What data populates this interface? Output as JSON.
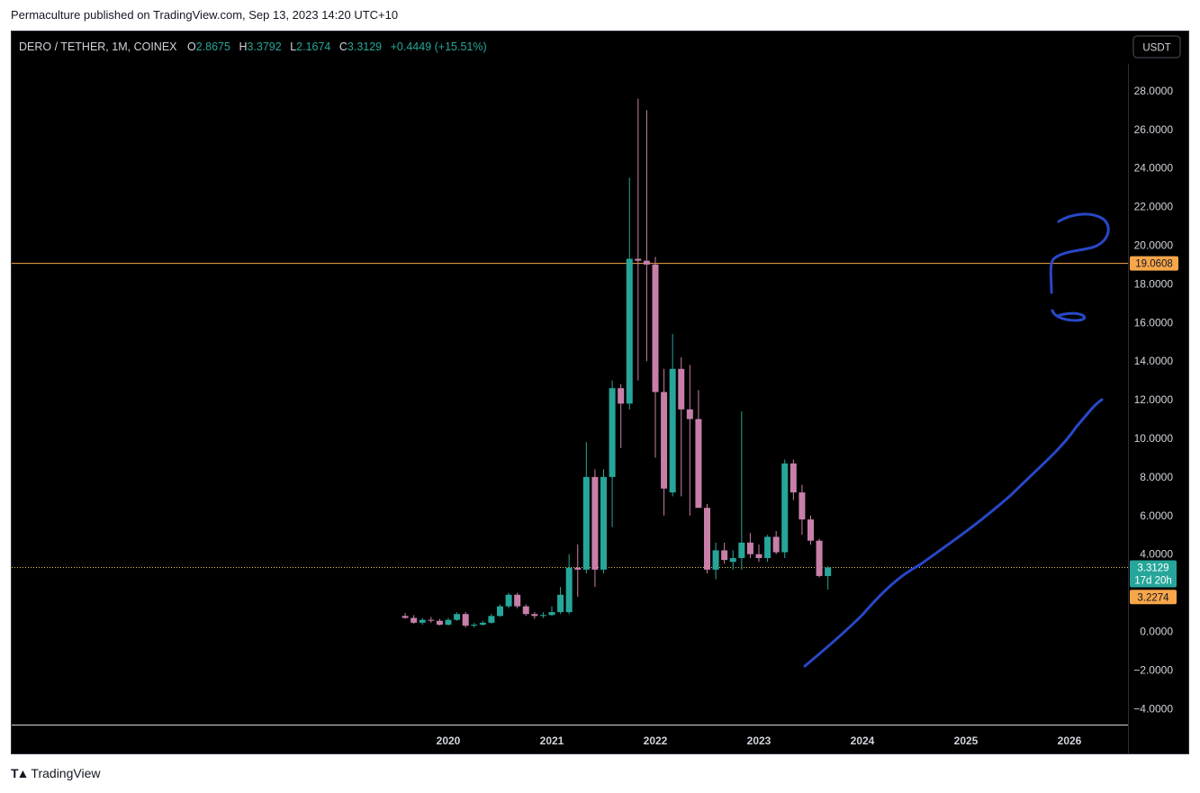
{
  "header": {
    "publish_line": "Permaculture published on TradingView.com, Sep 13, 2023 14:20 UTC+10"
  },
  "footer": {
    "brand": "TradingView",
    "logo_icon": "tradingview-logo-icon"
  },
  "legend": {
    "symbol": "DERO / TETHER, 1M, COINEX",
    "o_label": "O",
    "o_value": "2.8675",
    "h_label": "H",
    "h_value": "3.3792",
    "l_label": "L",
    "l_value": "2.1674",
    "c_label": "C",
    "c_value": "3.3129",
    "change": "+0.4449 (+15.51%)"
  },
  "currency_button": "USDT",
  "colors": {
    "up": "#26a69a",
    "down": "#c77fa8",
    "orange_line": "#f7a64a",
    "price_line": "#e8c25e",
    "drawing": "#2848c8",
    "axis_text": "#d1d4dc"
  },
  "chart_data": {
    "type": "candlestick",
    "ylim": [
      -5,
      30
    ],
    "ytick_labels": [
      "28.0000",
      "26.0000",
      "24.0000",
      "22.0000",
      "20.0000",
      "18.0000",
      "16.0000",
      "14.0000",
      "12.0000",
      "10.0000",
      "8.0000",
      "6.0000",
      "4.0000",
      "0.0000",
      "−2.0000",
      "−4.0000"
    ],
    "ytick_values": [
      28,
      26,
      24,
      22,
      20,
      18,
      16,
      14,
      12,
      10,
      8,
      6,
      4,
      0,
      -2,
      -4
    ],
    "xtick_labels": [
      "2020",
      "2021",
      "2022",
      "2023",
      "2024",
      "2025",
      "2026"
    ],
    "xtick_values": [
      2020,
      2021,
      2022,
      2023,
      2024,
      2025,
      2026
    ],
    "horizontal_line": {
      "value": 19.0608,
      "label": "19.0608"
    },
    "current_price": {
      "value": 3.3129,
      "label": "3.3129",
      "countdown": "17d 20h"
    },
    "prev_marker": {
      "value": 3.2274,
      "label": "3.2274"
    },
    "candles": [
      {
        "t": "2019-08",
        "o": 0.8,
        "h": 0.95,
        "l": 0.65,
        "c": 0.7
      },
      {
        "t": "2019-09",
        "o": 0.7,
        "h": 0.85,
        "l": 0.4,
        "c": 0.45
      },
      {
        "t": "2019-10",
        "o": 0.45,
        "h": 0.7,
        "l": 0.35,
        "c": 0.6
      },
      {
        "t": "2019-11",
        "o": 0.6,
        "h": 0.75,
        "l": 0.45,
        "c": 0.55
      },
      {
        "t": "2019-12",
        "o": 0.55,
        "h": 0.65,
        "l": 0.3,
        "c": 0.35
      },
      {
        "t": "2020-01",
        "o": 0.35,
        "h": 0.7,
        "l": 0.3,
        "c": 0.6
      },
      {
        "t": "2020-02",
        "o": 0.6,
        "h": 1.0,
        "l": 0.55,
        "c": 0.9
      },
      {
        "t": "2020-03",
        "o": 0.9,
        "h": 1.0,
        "l": 0.2,
        "c": 0.3
      },
      {
        "t": "2020-04",
        "o": 0.3,
        "h": 0.45,
        "l": 0.2,
        "c": 0.35
      },
      {
        "t": "2020-05",
        "o": 0.35,
        "h": 0.55,
        "l": 0.3,
        "c": 0.45
      },
      {
        "t": "2020-06",
        "o": 0.45,
        "h": 0.9,
        "l": 0.4,
        "c": 0.8
      },
      {
        "t": "2020-07",
        "o": 0.8,
        "h": 1.4,
        "l": 0.75,
        "c": 1.3
      },
      {
        "t": "2020-08",
        "o": 1.3,
        "h": 2.0,
        "l": 1.2,
        "c": 1.9
      },
      {
        "t": "2020-09",
        "o": 1.9,
        "h": 2.0,
        "l": 1.2,
        "c": 1.3
      },
      {
        "t": "2020-10",
        "o": 1.3,
        "h": 1.4,
        "l": 0.8,
        "c": 0.9
      },
      {
        "t": "2020-11",
        "o": 0.9,
        "h": 1.0,
        "l": 0.65,
        "c": 0.8
      },
      {
        "t": "2020-12",
        "o": 0.8,
        "h": 1.0,
        "l": 0.7,
        "c": 0.85
      },
      {
        "t": "2021-01",
        "o": 0.85,
        "h": 1.3,
        "l": 0.8,
        "c": 1.0
      },
      {
        "t": "2021-02",
        "o": 1.0,
        "h": 2.3,
        "l": 0.9,
        "c": 1.9
      },
      {
        "t": "2021-03",
        "o": 1.0,
        "h": 4.0,
        "l": 0.9,
        "c": 3.3
      },
      {
        "t": "2021-04",
        "o": 3.3,
        "h": 4.5,
        "l": 1.8,
        "c": 3.2
      },
      {
        "t": "2021-05",
        "o": 3.2,
        "h": 9.8,
        "l": 3.0,
        "c": 8.0
      },
      {
        "t": "2021-06",
        "o": 8.0,
        "h": 8.4,
        "l": 2.3,
        "c": 3.2
      },
      {
        "t": "2021-07",
        "o": 3.2,
        "h": 8.4,
        "l": 3.0,
        "c": 8.0
      },
      {
        "t": "2021-08",
        "o": 8.0,
        "h": 13.0,
        "l": 5.4,
        "c": 12.6
      },
      {
        "t": "2021-09",
        "o": 12.6,
        "h": 12.8,
        "l": 9.5,
        "c": 11.8
      },
      {
        "t": "2021-10",
        "o": 11.8,
        "h": 23.5,
        "l": 11.5,
        "c": 19.3
      },
      {
        "t": "2021-11",
        "o": 19.3,
        "h": 27.6,
        "l": 13.0,
        "c": 19.2
      },
      {
        "t": "2021-12",
        "o": 19.2,
        "h": 27.0,
        "l": 14.0,
        "c": 19.0
      },
      {
        "t": "2022-01",
        "o": 19.0,
        "h": 19.4,
        "l": 9.0,
        "c": 12.4
      },
      {
        "t": "2022-02",
        "o": 12.4,
        "h": 13.6,
        "l": 6.0,
        "c": 7.4
      },
      {
        "t": "2022-03",
        "o": 7.2,
        "h": 15.4,
        "l": 7.0,
        "c": 13.6
      },
      {
        "t": "2022-04",
        "o": 13.6,
        "h": 14.2,
        "l": 7.0,
        "c": 11.5
      },
      {
        "t": "2022-05",
        "o": 11.5,
        "h": 13.8,
        "l": 6.0,
        "c": 11.0
      },
      {
        "t": "2022-06",
        "o": 11.0,
        "h": 12.5,
        "l": 6.5,
        "c": 6.4
      },
      {
        "t": "2022-07",
        "o": 6.4,
        "h": 6.6,
        "l": 3.0,
        "c": 3.2
      },
      {
        "t": "2022-08",
        "o": 3.2,
        "h": 4.6,
        "l": 2.7,
        "c": 4.2
      },
      {
        "t": "2022-09",
        "o": 4.2,
        "h": 4.6,
        "l": 3.5,
        "c": 3.7
      },
      {
        "t": "2022-10",
        "o": 3.6,
        "h": 4.2,
        "l": 3.2,
        "c": 3.8
      },
      {
        "t": "2022-11",
        "o": 3.8,
        "h": 11.4,
        "l": 3.2,
        "c": 4.6
      },
      {
        "t": "2022-12",
        "o": 4.6,
        "h": 5.1,
        "l": 3.8,
        "c": 4.0
      },
      {
        "t": "2023-01",
        "o": 4.0,
        "h": 4.5,
        "l": 3.6,
        "c": 3.8
      },
      {
        "t": "2023-02",
        "o": 3.8,
        "h": 5.0,
        "l": 3.6,
        "c": 4.9
      },
      {
        "t": "2023-03",
        "o": 4.9,
        "h": 5.2,
        "l": 4.0,
        "c": 4.1
      },
      {
        "t": "2023-04",
        "o": 4.1,
        "h": 8.9,
        "l": 3.8,
        "c": 8.7
      },
      {
        "t": "2023-05",
        "o": 8.7,
        "h": 8.9,
        "l": 6.8,
        "c": 7.2
      },
      {
        "t": "2023-06",
        "o": 7.2,
        "h": 7.6,
        "l": 5.0,
        "c": 5.8
      },
      {
        "t": "2023-07",
        "o": 5.8,
        "h": 6.0,
        "l": 4.5,
        "c": 4.7
      },
      {
        "t": "2023-08",
        "o": 4.7,
        "h": 4.8,
        "l": 2.8,
        "c": 2.87
      },
      {
        "t": "2023-09",
        "o": 2.8675,
        "h": 3.3792,
        "l": 2.1674,
        "c": 3.3129
      }
    ]
  }
}
